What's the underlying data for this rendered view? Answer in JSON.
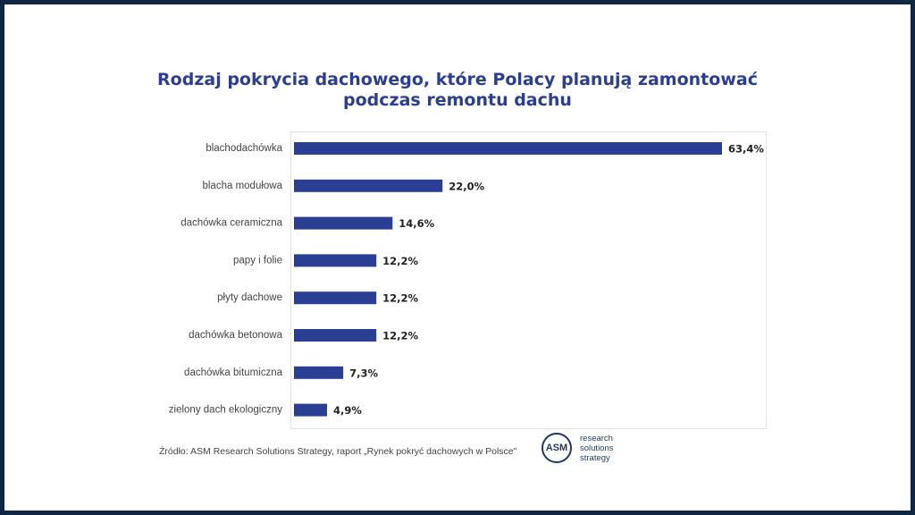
{
  "chart_data": {
    "type": "bar",
    "orientation": "horizontal",
    "title_lines": [
      "Rodzaj pokrycia dachowego, które Polacy planują zamontować",
      "podczas remontu dachu"
    ],
    "categories": [
      "blachodachówka",
      "blacha modułowa",
      "dachówka ceramiczna",
      "papy i folie",
      "płyty dachowe",
      "dachówka betonowa",
      "dachówka bitumiczna",
      "zielony dach ekologiczny"
    ],
    "values": [
      63.4,
      22.0,
      14.6,
      12.2,
      12.2,
      12.2,
      7.3,
      4.9
    ],
    "value_labels": [
      "63,4%",
      "22,0%",
      "14,6%",
      "12,2%",
      "12,2%",
      "12,2%",
      "7,3%",
      "4,9%"
    ],
    "unit": "%",
    "xlim": [
      0,
      63.4
    ],
    "grid": false,
    "bar_color": "#2a3e93"
  },
  "source_text": "Źródło: ASM Research Solutions Strategy, raport „Rynek pokryć dachowych w Polsce\"",
  "logo": {
    "mark": "ASM",
    "lines": [
      "research",
      "solutions",
      "strategy"
    ]
  },
  "colors": {
    "frame": "#0f2745",
    "title": "#2a3e93",
    "bar": "#2a3e93",
    "value_text": "#222222",
    "category_text": "#444444"
  }
}
